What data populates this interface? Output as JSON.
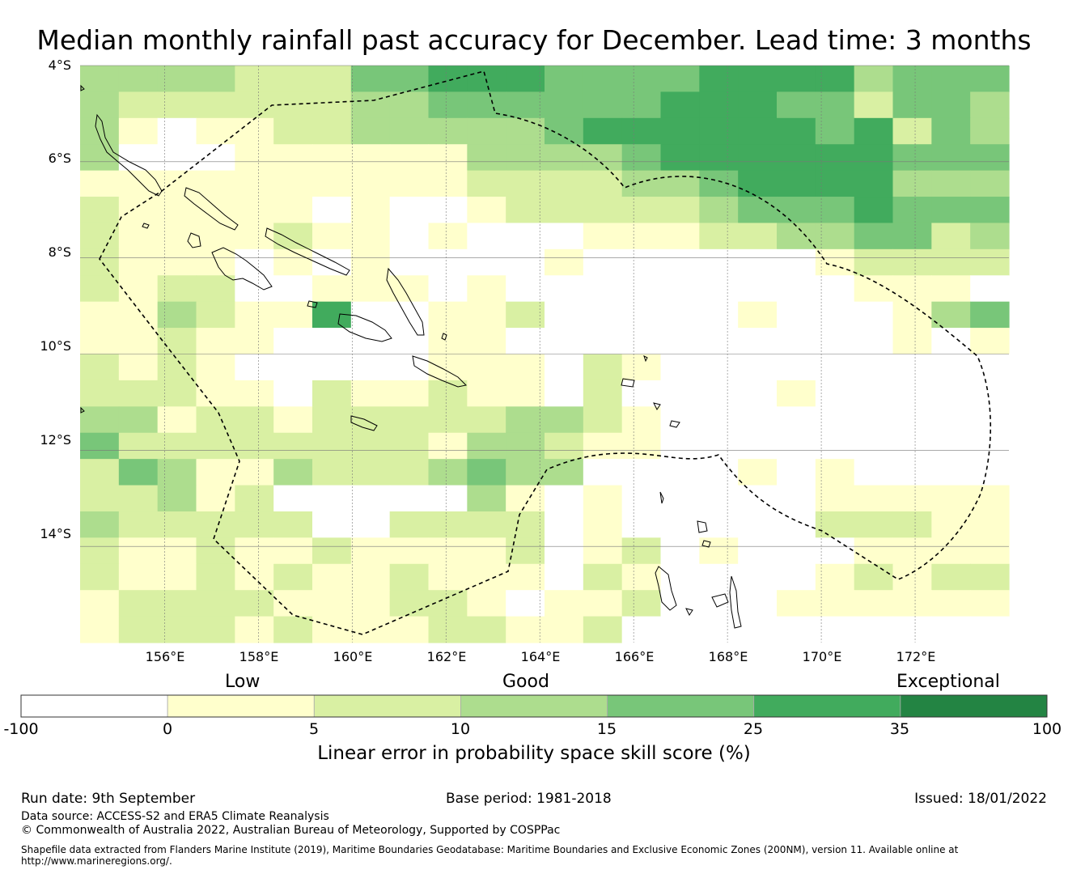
{
  "title": "Median monthly rainfall past accuracy for December. Lead time: 3 months",
  "map": {
    "lon_range": [
      154.2,
      174.0
    ],
    "lat_range": [
      -16.0,
      -4.0
    ],
    "lat_labels": [
      "4°S",
      "6°S",
      "8°S",
      "10°S",
      "12°S",
      "14°S"
    ],
    "lon_labels": [
      "156°E",
      "158°E",
      "160°E",
      "162°E",
      "164°E",
      "166°E",
      "168°E",
      "170°E",
      "172°E"
    ],
    "grid_cols": 24,
    "grid_rows": 22,
    "cell_classes": [
      "333322244555444455553444",
      "322222233444444555442443",
      "310112233333455555545243",
      "300011111133334555555444",
      "111111111122223345555333",
      "211111010012222234445444",
      "211112110100011122334423",
      "211101010000100000012222",
      "212200111010000000001110",
      "113211500112000001000134",
      "112110000110000000000101",
      "212100000111021000000000",
      "222110211211020000100000",
      "331221222223321000000000",
      "422222222133211000000000",
      "243113222343300001010000",
      "223120000031010000011111",
      "322222002222010000022211",
      "211211211112012010001111",
      "211212112111021000012122",
      "122221112210112000111111",
      "122212111221120000000000"
    ],
    "cell_note": "rows listed north to south, columns west to east; class index into colorbar colors (0=-100..0, 1=0..5, 2=5..10, 3=10..15, 4=15..25, 5=25..35)"
  },
  "category_labels": {
    "low": "Low",
    "good": "Good",
    "exceptional": "Exceptional"
  },
  "colorbar": {
    "ticks": [
      "-100",
      "0",
      "5",
      "10",
      "15",
      "25",
      "35",
      "100"
    ],
    "colors": [
      "#ffffff",
      "#ffffcc",
      "#d9f0a3",
      "#addd8e",
      "#78c679",
      "#41ab5d",
      "#238443"
    ],
    "label": "Linear error in probability space skill score (%)"
  },
  "footer": {
    "run_date": "Run date: 9th September",
    "base_period": "Base period: 1981-2018",
    "issued": "Issued: 18/01/2022",
    "data_source": "Data source: ACCESS-S2 and ERA5 Climate Reanalysis",
    "copyright": "© Commonwealth of Australia 2022, Australian Bureau of Meteorology, Supported by COSPPac",
    "shapefile": "Shapefile data extracted from Flanders Marine Institute (2019), Maritime Boundaries Geodatabase: Maritime Boundaries and Exclusive Economic Zones (200NM), version 11. Available online at http://www.marineregions.org/."
  }
}
